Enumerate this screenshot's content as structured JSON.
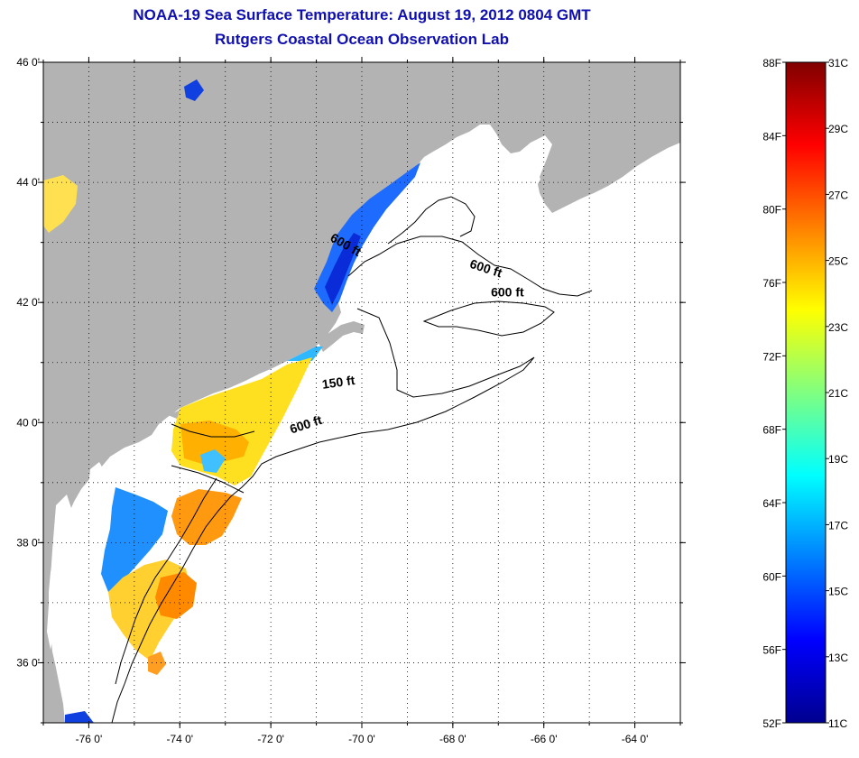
{
  "title": {
    "line1": "NOAA-19 Sea Surface Temperature:  August 19, 2012 0804 GMT",
    "line2": "Rutgers Coastal Ocean Observation Lab"
  },
  "map": {
    "lon_range": [
      -77,
      -63
    ],
    "lat_range": [
      35,
      46
    ],
    "lon_ticks": [
      {
        "value": -76,
        "label": "-76 0'"
      },
      {
        "value": -74,
        "label": "-74 0'"
      },
      {
        "value": -72,
        "label": "-72 0'"
      },
      {
        "value": -70,
        "label": "-70 0'"
      },
      {
        "value": -68,
        "label": "-68 0'"
      },
      {
        "value": -66,
        "label": "-66 0'"
      },
      {
        "value": -64,
        "label": "-64 0'"
      }
    ],
    "lat_ticks": [
      {
        "value": 46,
        "label": "46 0'"
      },
      {
        "value": 44,
        "label": "44 0'"
      },
      {
        "value": 42,
        "label": "42 0'"
      },
      {
        "value": 40,
        "label": "40 0'"
      },
      {
        "value": 38,
        "label": "38 0'"
      },
      {
        "value": 36,
        "label": "36 0'"
      }
    ],
    "contour_labels": [
      {
        "text": "600 ft",
        "lon": -70.4,
        "lat": 42.9,
        "angle": 30
      },
      {
        "text": "600 ft",
        "lon": -67.3,
        "lat": 42.5,
        "angle": 18
      },
      {
        "text": "600 ft",
        "lon": -66.8,
        "lat": 42.1,
        "angle": 0
      },
      {
        "text": "150 ft",
        "lon": -70.5,
        "lat": 40.6,
        "angle": -8
      },
      {
        "text": "600 ft",
        "lon": -71.2,
        "lat": 39.9,
        "angle": -18
      }
    ],
    "land_color": "#b3b3b3",
    "water_color": "#ffffff"
  },
  "colorbar": {
    "fahrenheit_labels": [
      "88F",
      "84F",
      "80F",
      "76F",
      "72F",
      "68F",
      "64F",
      "60F",
      "56F",
      "52F"
    ],
    "celsius_labels": [
      "31C",
      "29C",
      "27C",
      "25C",
      "23C",
      "21C",
      "19C",
      "17C",
      "15C",
      "13C",
      "11C"
    ],
    "colors": [
      "#00008f",
      "#0000ff",
      "#0080ff",
      "#00ffff",
      "#80ff80",
      "#ffff00",
      "#ff8000",
      "#ff0000",
      "#800000"
    ]
  }
}
